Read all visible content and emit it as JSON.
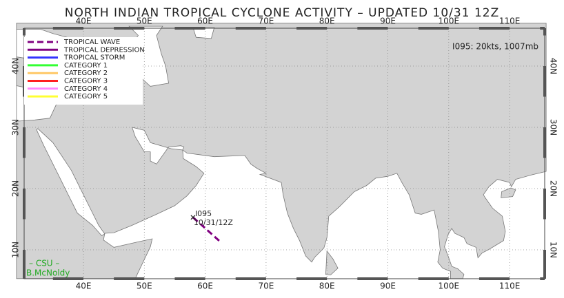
{
  "header": {
    "title": "NORTH INDIAN TROPICAL CYCLONE ACTIVITY – UPDATED 10/31 12Z"
  },
  "lon_labels": [
    "40E",
    "50E",
    "60E",
    "70E",
    "80E",
    "90E",
    "100E",
    "110E"
  ],
  "lat_labels": [
    "40N",
    "30N",
    "20N",
    "10N"
  ],
  "legend": [
    {
      "label": "TROPICAL WAVE",
      "color": "#800080",
      "dashed": true
    },
    {
      "label": "TROPICAL DEPRESSION",
      "color": "#800080"
    },
    {
      "label": "TROPICAL STORM",
      "color": "#3333ff"
    },
    {
      "label": "CATEGORY 1",
      "color": "#33ff33"
    },
    {
      "label": "CATEGORY 2",
      "color": "#ffc866"
    },
    {
      "label": "CATEGORY 3",
      "color": "#ff2020"
    },
    {
      "label": "CATEGORY 4",
      "color": "#ff88ff"
    },
    {
      "label": "CATEGORY 5",
      "color": "#ffff33"
    }
  ],
  "status": "I095: 20kts, 1007mb",
  "storm": {
    "name": "I095",
    "time": "10/31/12Z"
  },
  "credits": [
    "– CSU –",
    "B.McNoldy"
  ]
}
